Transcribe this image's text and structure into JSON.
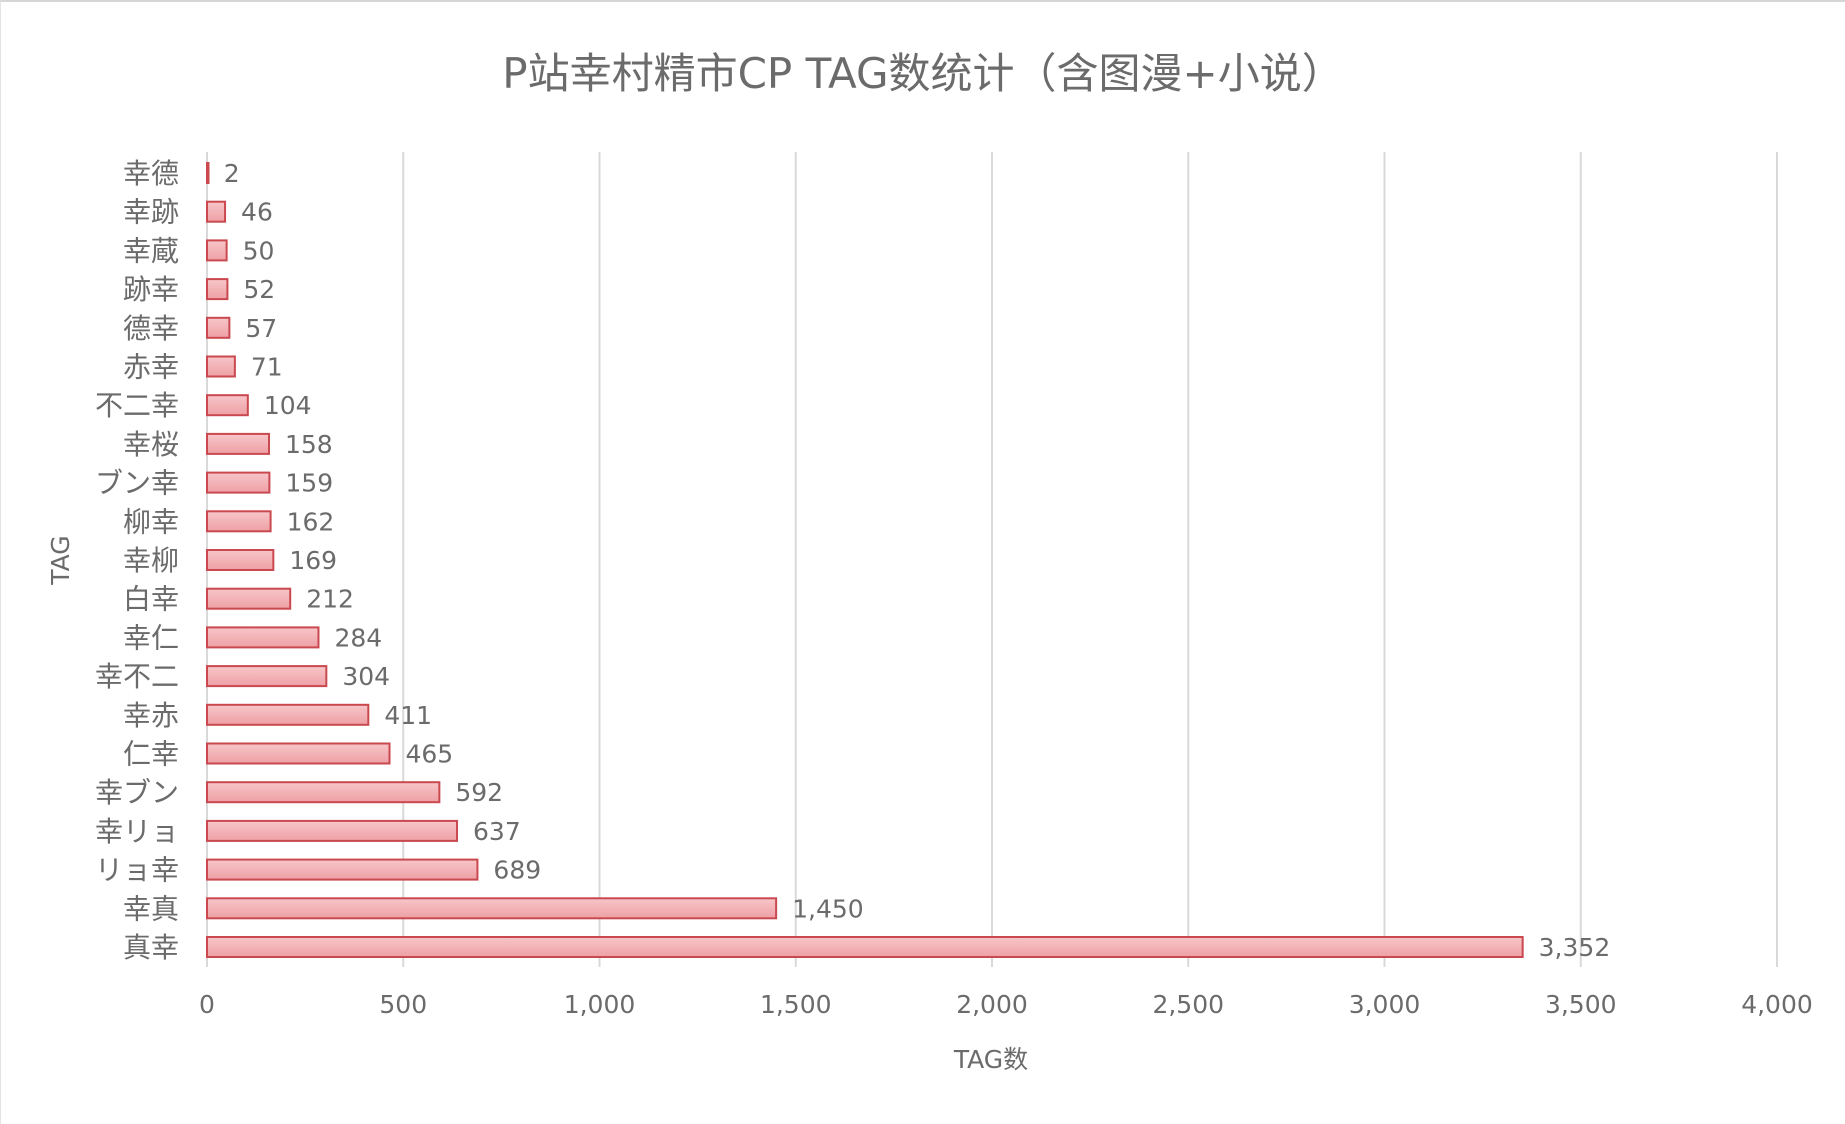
{
  "chart_data": {
    "type": "bar",
    "orientation": "horizontal",
    "title": "P站幸村精市CP TAG数统计（含图漫+小说）",
    "xlabel": "TAG数",
    "ylabel": "TAG",
    "xlim": [
      0,
      4000
    ],
    "x_ticks": [
      0,
      500,
      1000,
      1500,
      2000,
      2500,
      3000,
      3500,
      4000
    ],
    "x_tick_labels": [
      "0",
      "500",
      "1,000",
      "1,500",
      "2,000",
      "2,500",
      "3,000",
      "3,500",
      "4,000"
    ],
    "grid": "vertical",
    "legend": "none",
    "categories": [
      "幸德",
      "幸跡",
      "幸蔵",
      "跡幸",
      "德幸",
      "赤幸",
      "不二幸",
      "幸桜",
      "ブン幸",
      "柳幸",
      "幸柳",
      "白幸",
      "幸仁",
      "幸不二",
      "幸赤",
      "仁幸",
      "幸ブン",
      "幸リョ",
      "リョ幸",
      "幸真",
      "真幸"
    ],
    "values": [
      2,
      46,
      50,
      52,
      57,
      71,
      104,
      158,
      159,
      162,
      169,
      212,
      284,
      304,
      411,
      465,
      592,
      637,
      689,
      1450,
      3352
    ],
    "value_labels": [
      "2",
      "46",
      "50",
      "52",
      "57",
      "71",
      "104",
      "158",
      "159",
      "162",
      "169",
      "212",
      "284",
      "304",
      "411",
      "465",
      "592",
      "637",
      "689",
      "1,450",
      "3,352"
    ],
    "colors": {
      "bar_fill": "#f2aeb2",
      "bar_stroke": "#c9494f",
      "text": "#6b6b6b",
      "grid": "#d9d9d9"
    }
  }
}
